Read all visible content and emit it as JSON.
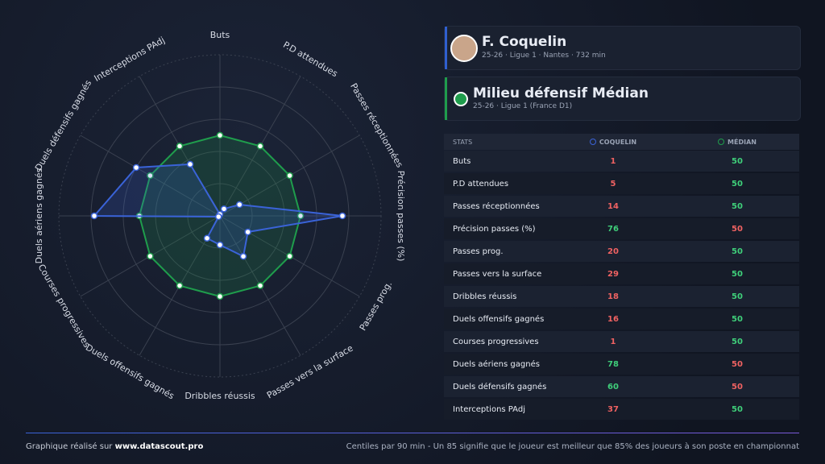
{
  "header": {
    "player": "F. Coquelin",
    "player_info": "25-26 · Ligue 1 · Nantes · 732 min",
    "reference": "Milieu défensif Médian",
    "reference_info": "25-26 · Ligue 1 (France D1)"
  },
  "chart_data": {
    "type": "radar",
    "categories": [
      "Buts",
      "P.D attendues",
      "Passes réceptionnées",
      "Précision passes (%)",
      "Passes prog.",
      "Passes vers la surface",
      "Dribbles réussis",
      "Duels offensifs gagnés",
      "Courses progressives",
      "Duels aériens gagnés",
      "Duels défensifs gagnés",
      "Interceptions PAdj"
    ],
    "series": [
      {
        "name": "COQUELIN",
        "color": "#3a63d8",
        "values": [
          1,
          5,
          14,
          76,
          20,
          29,
          18,
          16,
          1,
          78,
          60,
          37
        ]
      },
      {
        "name": "MÉDIAN",
        "color": "#1f9d4c",
        "values": [
          50,
          50,
          50,
          50,
          50,
          50,
          50,
          50,
          50,
          50,
          50,
          50
        ]
      }
    ],
    "ylim": [
      0,
      100
    ],
    "yticks": [
      20,
      40,
      60,
      80,
      100
    ]
  },
  "table": {
    "header": "STATS"
  },
  "footer": {
    "left": "Graphique réalisé sur",
    "site": "www.datascout.pro",
    "note": "Centiles par 90 min - Un 85 signifie que le joueur est meilleur que 85% des joueurs à son poste en championnat"
  }
}
